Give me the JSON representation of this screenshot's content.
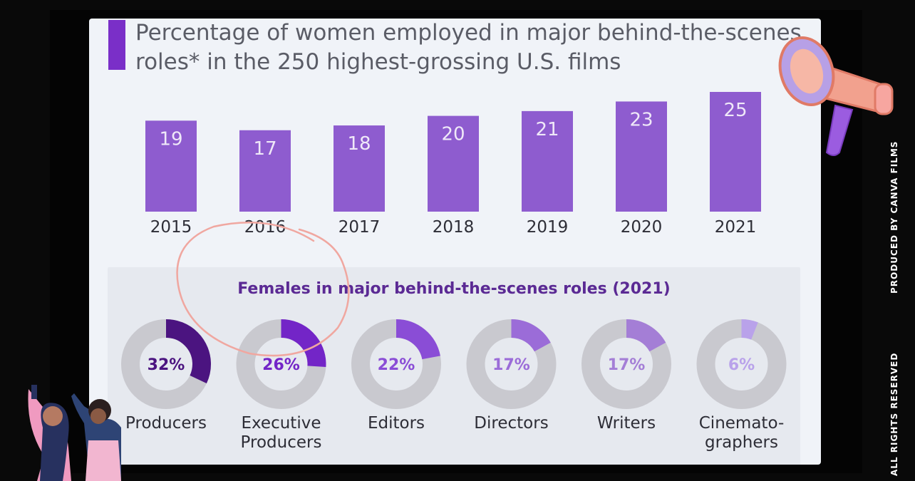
{
  "title": "Percentage of women employed in major behind-the-scenes roles* in the 250 highest-grossing U.S. films",
  "side_texts": {
    "produced_by": "PRODUCED BY CANVA FILMS",
    "rights": "ALL RIGHTS RESERVED"
  },
  "colors": {
    "bar": "#8e5ccf",
    "accent": "#7a2fc8",
    "donut_track": "#c9c9cf",
    "annotation_circle": "#f0a7a0"
  },
  "icons": [
    "megaphone-icon",
    "women-activists-illustration"
  ],
  "chart_data": [
    {
      "type": "bar",
      "title": "Percentage of women employed in major behind-the-scenes roles* in the 250 highest-grossing U.S. films",
      "categories": [
        "2015",
        "2016",
        "2017",
        "2018",
        "2019",
        "2020",
        "2021"
      ],
      "values": [
        19,
        17,
        18,
        20,
        21,
        23,
        25
      ],
      "data_labels": [
        "19",
        "17",
        "18",
        "20",
        "21",
        "23",
        "25"
      ],
      "ylim": [
        0,
        25
      ],
      "grid": false,
      "legend": "none"
    },
    {
      "type": "pie",
      "title": "Females in major behind-the-scenes roles (2021)",
      "categories": [
        "Producers",
        "Executive Producers",
        "Editors",
        "Directors",
        "Writers",
        "Cinematographers"
      ],
      "label_lines": [
        [
          "Producers"
        ],
        [
          "Executive",
          "Producers"
        ],
        [
          "Editors"
        ],
        [
          "Directors"
        ],
        [
          "Writers"
        ],
        [
          "Cinemato-",
          "graphers"
        ]
      ],
      "values": [
        32,
        26,
        22,
        17,
        17,
        6
      ],
      "data_labels": [
        "32%",
        "26%",
        "22%",
        "17%",
        "17%",
        "6%"
      ],
      "colors": [
        "#4b1480",
        "#7325c7",
        "#8a4dd6",
        "#9b6cd8",
        "#a47ed6",
        "#b9a2ea"
      ],
      "grid": false,
      "legend": "none"
    }
  ]
}
